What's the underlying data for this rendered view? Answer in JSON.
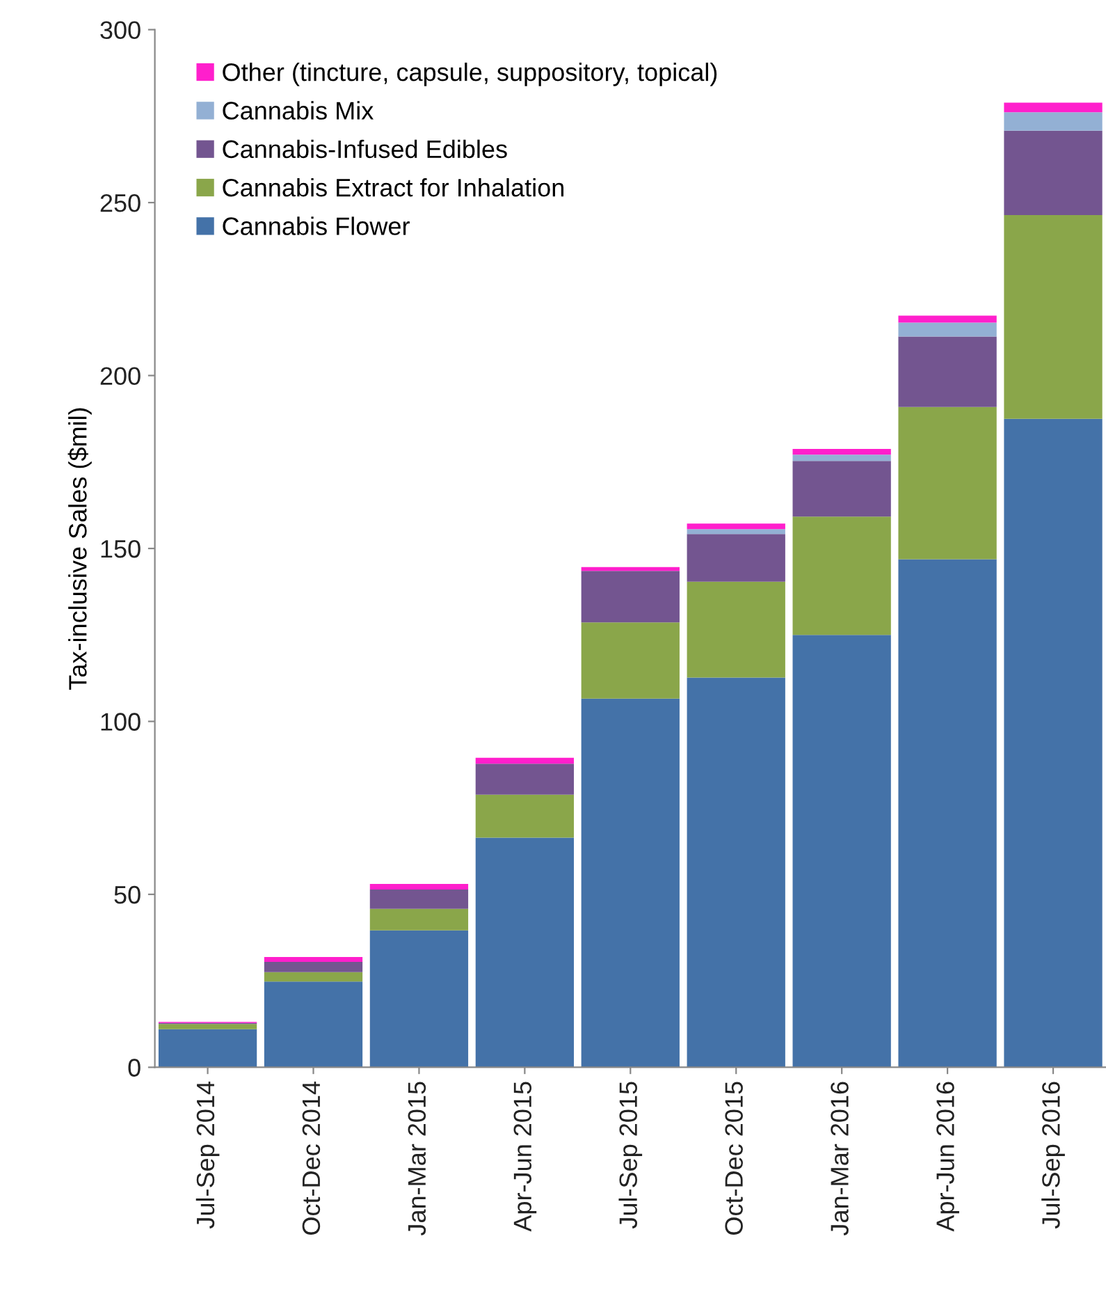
{
  "chart_data": {
    "type": "bar",
    "stacked": true,
    "ylabel": "Tax-inclusive Sales ($mil)",
    "categories": [
      "Jul-Sep 2014",
      "Oct-Dec 2014",
      "Jan-Mar 2015",
      "Apr-Jun 2015",
      "Jul-Sep 2015",
      "Oct-Dec 2015",
      "Jan-Mar 2016",
      "Apr-Jun 2016",
      "Jul-Sep 2016"
    ],
    "series": [
      {
        "name": "Cannabis Flower",
        "color": "#4472a8",
        "values": [
          11.0,
          24.8,
          39.6,
          66.4,
          106.6,
          112.7,
          125.0,
          146.9,
          187.5
        ]
      },
      {
        "name": "Cannabis Extract for Inhalation",
        "color": "#8aa64a",
        "values": [
          1.5,
          2.7,
          6.2,
          12.4,
          22.0,
          27.7,
          34.2,
          44.0,
          58.9
        ]
      },
      {
        "name": "Cannabis-Infused Edibles",
        "color": "#735590",
        "values": [
          0.3,
          3.0,
          5.6,
          9.0,
          14.9,
          13.8,
          16.1,
          20.4,
          24.4
        ]
      },
      {
        "name": "Cannabis Mix",
        "color": "#93b0d4",
        "values": [
          0,
          0,
          0,
          0,
          0,
          1.4,
          1.8,
          4.0,
          5.3
        ]
      },
      {
        "name": "Other (tincture, capsule, suppository, topical)",
        "color": "#ff1fcc",
        "values": [
          0.3,
          1.4,
          1.6,
          1.7,
          1.1,
          1.6,
          1.7,
          2.0,
          2.8
        ]
      }
    ],
    "ylim": [
      0,
      300
    ],
    "yticks": [
      0,
      50,
      100,
      150,
      200,
      250,
      300
    ],
    "grid": false,
    "legend": "top left"
  }
}
